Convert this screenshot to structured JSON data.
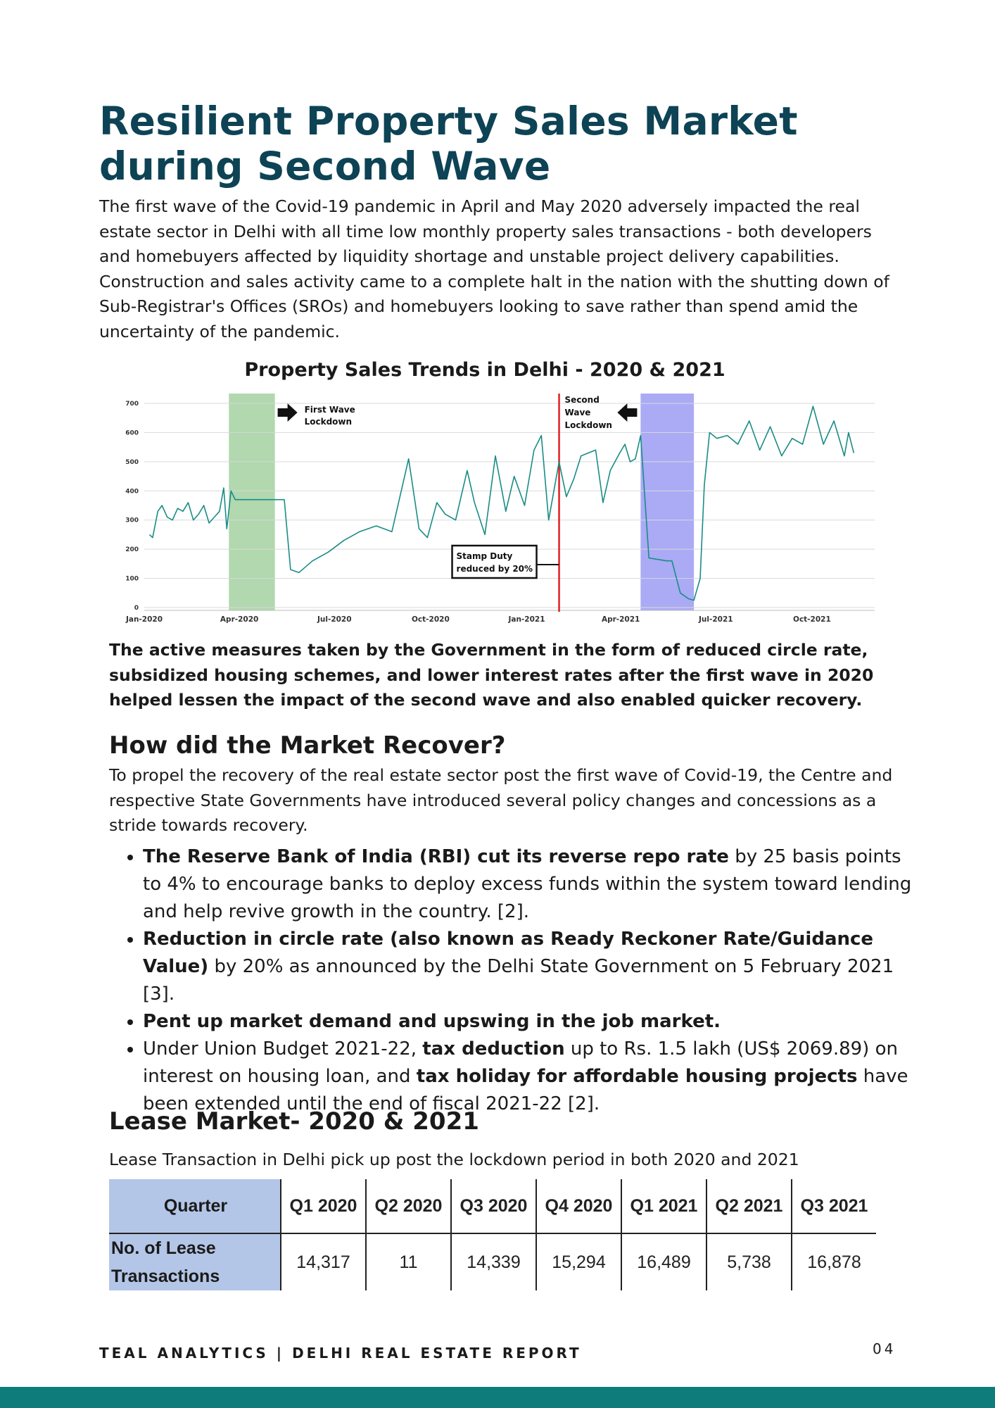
{
  "title": "Resilient Property Sales Market during Second Wave",
  "intro": "The first wave of the Covid-19 pandemic in April and May 2020 adversely impacted the real estate sector in Delhi with all time low monthly property sales transactions - both developers and homebuyers affected by liquidity shortage and unstable project delivery capabilities. Construction and sales activity came to a complete halt in the nation with the shutting down of Sub-Registrar's Offices (SROs) and homebuyers looking to save rather than spend amid the uncertainty of the pandemic.",
  "chart_data": {
    "type": "line",
    "title": "Property Sales Trends in Delhi - 2020 & 2021",
    "xlabel": "",
    "ylabel": "",
    "ylim": [
      0,
      700
    ],
    "yticks": [
      "0",
      "100",
      "200",
      "300",
      "400",
      "500",
      "600",
      "700"
    ],
    "xticks": [
      "Jan-2020",
      "Apr-2020",
      "Jul-2020",
      "Oct-2020",
      "Jan-2021",
      "Apr-2021",
      "Jul-2021",
      "Oct-2021"
    ],
    "grid": true,
    "color": "#1a8c86",
    "series": [
      {
        "x": [
          "2020-01-06",
          "2020-01-09",
          "2020-01-14",
          "2020-01-18",
          "2020-01-23",
          "2020-01-28",
          "2020-02-02",
          "2020-02-07",
          "2020-02-12",
          "2020-02-17",
          "2020-02-22",
          "2020-02-27",
          "2020-03-03",
          "2020-03-08",
          "2020-03-13",
          "2020-03-17",
          "2020-03-20",
          "2020-03-24",
          "2020-03-28",
          "2020-04-08",
          "2020-04-28",
          "2020-05-14",
          "2020-05-20",
          "2020-05-28",
          "2020-06-10",
          "2020-06-25",
          "2020-07-10",
          "2020-07-25",
          "2020-08-10",
          "2020-08-25",
          "2020-09-10",
          "2020-09-20",
          "2020-09-28",
          "2020-10-07",
          "2020-10-15",
          "2020-10-25",
          "2020-11-05",
          "2020-11-12",
          "2020-11-22",
          "2020-12-02",
          "2020-12-12",
          "2020-12-20",
          "2020-12-30",
          "2021-01-08",
          "2021-01-15",
          "2021-01-22",
          "2021-02-01",
          "2021-02-08",
          "2021-02-15",
          "2021-02-22",
          "2021-03-01",
          "2021-03-08",
          "2021-03-15",
          "2021-03-22",
          "2021-03-31",
          "2021-04-05",
          "2021-04-10",
          "2021-04-15",
          "2021-04-20",
          "2021-04-28",
          "2021-05-15",
          "2021-05-20",
          "2021-05-28",
          "2021-06-05",
          "2021-06-10",
          "2021-06-16",
          "2021-06-20",
          "2021-06-25",
          "2021-07-02",
          "2021-07-12",
          "2021-07-22",
          "2021-08-02",
          "2021-08-12",
          "2021-08-22",
          "2021-09-02",
          "2021-09-12",
          "2021-09-22",
          "2021-10-02",
          "2021-10-12",
          "2021-10-22",
          "2021-11-01",
          "2021-11-05",
          "2021-11-10"
        ],
        "values": [
          250,
          240,
          330,
          350,
          310,
          300,
          340,
          330,
          360,
          300,
          320,
          350,
          290,
          310,
          330,
          410,
          270,
          400,
          370,
          370,
          370,
          370,
          130,
          120,
          160,
          190,
          230,
          260,
          280,
          260,
          510,
          270,
          240,
          360,
          320,
          300,
          470,
          360,
          250,
          520,
          330,
          450,
          350,
          540,
          590,
          300,
          500,
          380,
          440,
          520,
          530,
          540,
          360,
          470,
          530,
          560,
          500,
          510,
          590,
          170,
          160,
          160,
          50,
          30,
          25,
          100,
          420,
          600,
          580,
          590,
          560,
          640,
          540,
          620,
          520,
          580,
          560,
          690,
          560,
          640,
          520,
          600,
          530
        ]
      }
    ],
    "annotations": [
      "First Wave Lockdown",
      "Second Wave Lockdown",
      "Stamp Duty reduced by 20%"
    ],
    "shaded_regions": [
      {
        "start": "2020-03-22",
        "end": "2020-05-05",
        "color": "#b1d8ae"
      },
      {
        "start": "2021-04-20",
        "end": "2021-06-10",
        "color": "#aaaaf5"
      }
    ],
    "vline": {
      "date": "2021-02-01",
      "color": "#e02020"
    }
  },
  "bold_note": "The active measures taken by the Government in the form of reduced circle rate, subsidized housing schemes, and lower interest rates after the first wave in 2020 helped lessen the impact of the second wave and also enabled quicker recovery.",
  "recover": {
    "heading": "How did the Market Recover?",
    "text": "To propel the recovery of the real estate sector post the first wave of Covid-19, the Centre and respective State Governments have introduced several policy changes and concessions as a stride towards recovery.",
    "bullets": [
      {
        "b1": "The Reserve Bank of India (RBI) cut its reverse repo rate",
        "t1": " by 25 basis points to 4% to encourage banks to deploy excess funds within the system toward lending and help revive growth in the country. [2]."
      },
      {
        "b1": "Reduction in circle rate (also known as Ready Reckoner Rate/Guidance Value)",
        "t1": " by 20% as announced by the Delhi State Government on 5 February 2021 [3]."
      },
      {
        "b1": "Pent up market demand and upswing in the job market."
      },
      {
        "t0": "Under Union Budget 2021-22, ",
        "b1": "tax deduction",
        "t1": " up to Rs. 1.5 lakh (US$ 2069.89) on interest on housing loan, and ",
        "b2": "tax holiday for affordable housing projects",
        "t2": " have been extended until the end of fiscal 2021-22 [2]."
      }
    ]
  },
  "lease": {
    "heading": "Lease Market- 2020 & 2021",
    "subtitle": "Lease Transaction in Delhi pick up post the lockdown period in both 2020 and 2021",
    "header_label": "Quarter",
    "row_label": "No. of Lease Transactions",
    "quarters": [
      "Q1 2020",
      "Q2 2020",
      "Q3 2020",
      "Q4 2020",
      "Q1 2021",
      "Q2 2021",
      "Q3 2021"
    ],
    "values": [
      "14,317",
      "11",
      "14,339",
      "15,294",
      "16,489",
      "5,738",
      "16,878"
    ]
  },
  "footer": {
    "text": "TEAL ANALYTICS | DELHI REAL ESTATE REPORT",
    "page": "04"
  },
  "colors": {
    "title": "#0d4355",
    "accent": "#0e7c7b",
    "table_header": "#b4c6e7"
  }
}
